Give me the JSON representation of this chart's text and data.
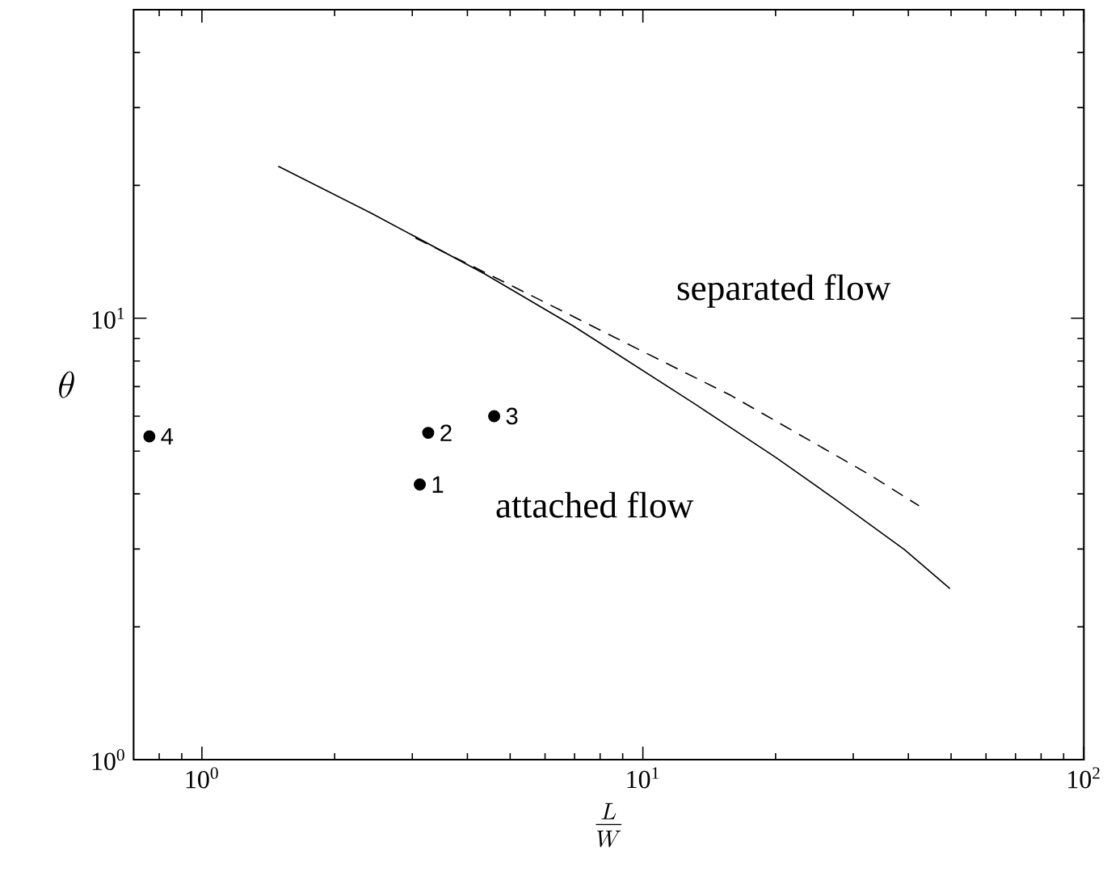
{
  "chart_data": {
    "type": "line",
    "xlabel": "\\frac{L}{W}",
    "ylabel": "\\theta",
    "log": "xy",
    "grid": false,
    "xlim": [
      0.7,
      100
    ],
    "ylim": [
      1,
      50
    ],
    "xticks": [
      {
        "value": 0.8,
        "label": null
      },
      {
        "value": 0.9,
        "label": null
      },
      {
        "value": 1,
        "label": "10$^{0}$"
      },
      {
        "value": 2,
        "label": null
      },
      {
        "value": 3,
        "label": null
      },
      {
        "value": 4,
        "label": null
      },
      {
        "value": 5,
        "label": null
      },
      {
        "value": 6,
        "label": null
      },
      {
        "value": 7,
        "label": null
      },
      {
        "value": 8,
        "label": null
      },
      {
        "value": 9,
        "label": null
      },
      {
        "value": 10,
        "label": "10$^{1}$"
      },
      {
        "value": 20,
        "label": null
      },
      {
        "value": 30,
        "label": null
      },
      {
        "value": 40,
        "label": null
      },
      {
        "value": 50,
        "label": null
      },
      {
        "value": 60,
        "label": null
      },
      {
        "value": 70,
        "label": null
      },
      {
        "value": 80,
        "label": null
      },
      {
        "value": 90,
        "label": null
      },
      {
        "value": 100,
        "label": "10$^{2}$"
      }
    ],
    "yticks": [
      {
        "value": 1,
        "label": "10$^{0}$"
      },
      {
        "value": 2,
        "label": null
      },
      {
        "value": 3,
        "label": null
      },
      {
        "value": 4,
        "label": null
      },
      {
        "value": 5,
        "label": null
      },
      {
        "value": 6,
        "label": null
      },
      {
        "value": 7,
        "label": null
      },
      {
        "value": 8,
        "label": null
      },
      {
        "value": 9,
        "label": null
      },
      {
        "value": 10,
        "label": "10$^{1}$"
      },
      {
        "value": 20,
        "label": null
      },
      {
        "value": 30,
        "label": null
      },
      {
        "value": 40,
        "label": null
      }
    ],
    "annotations": [
      "separated flow",
      "attached flow",
      {
        "text": "1",
        "x": 3.12,
        "y": 4.2
      },
      {
        "text": "2",
        "x": 3.26,
        "y": 5.5
      },
      {
        "text": "3",
        "x": 4.6,
        "y": 6.0
      },
      {
        "text": "4",
        "x": 0.76,
        "y": 5.4
      }
    ],
    "series": [
      {
        "color": "#000000",
        "line_style": "solid",
        "marker": "none",
        "x": [
          1.49,
          2.42,
          4.38,
          6.96,
          13.1,
          20.0,
          27.3,
          39.2,
          49.7
        ],
        "values": [
          22.1,
          17.3,
          12.6,
          9.6,
          6.4,
          4.84,
          3.89,
          2.99,
          2.44
        ]
      },
      {
        "color": "#000000",
        "line_style": "dashed",
        "marker": "none",
        "x": [
          3.05,
          5.64,
          9.9,
          15.9,
          32.3,
          42.3
        ],
        "values": [
          15.2,
          11.2,
          8.45,
          6.67,
          4.45,
          3.76
        ]
      },
      {
        "type": "scatter",
        "color": "#000000",
        "marker": "circle",
        "x": [
          3.12,
          3.26,
          4.6,
          0.76
        ],
        "values": [
          4.2,
          5.5,
          6.0,
          5.4
        ]
      }
    ]
  }
}
